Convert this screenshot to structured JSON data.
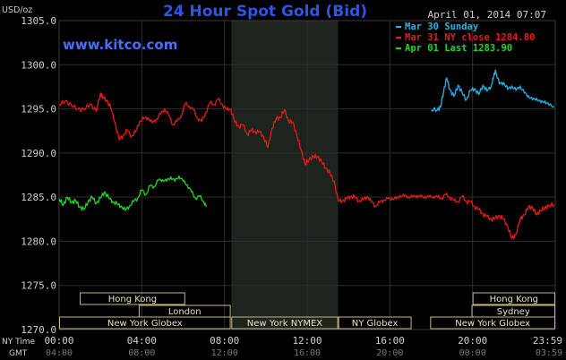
{
  "chart_data": {
    "type": "line",
    "title": "24 Hour Spot Gold (Bid)",
    "source": "www.kitco.com",
    "timestamp": "April 01, 2014 07:07",
    "unit": "USD/oz",
    "ylim": [
      1270,
      1305
    ],
    "yticks": [
      "1305.0",
      "1300.0",
      "1295.0",
      "1290.0",
      "1285.0",
      "1280.0",
      "1275.0",
      "1270.0"
    ],
    "xlim_hours": [
      0,
      24
    ],
    "x_ny_label": "NY Time",
    "x_gmt_label": "GMT",
    "x_ny_ticks": [
      "00:00",
      "04:00",
      "08:00",
      "12:00",
      "16:00",
      "20:00",
      "23:59"
    ],
    "x_gmt_ticks": [
      "04:00",
      "08:00",
      "12:00",
      "16:00",
      "20:00",
      "00:00",
      "03:59"
    ],
    "nymex_hours": [
      8.33,
      13.5
    ],
    "colors": {
      "background": "#000000",
      "plot_bg": "#000000",
      "nymex_bg": "#1d241d",
      "grid": "#2e2e2e",
      "title": "#2f55e6",
      "source": "#4a6cff",
      "session_box": "#c8b882",
      "axis_text": "#d0d0d0"
    },
    "series": [
      {
        "name": "Mar 30 Sunday",
        "color": "#25b4e8",
        "x": [
          18.0,
          18.3,
          18.45,
          18.6,
          18.75,
          18.9,
          19.1,
          19.3,
          19.5,
          19.7,
          19.9,
          20.1,
          20.3,
          20.5,
          20.7,
          20.9,
          21.0,
          21.1,
          21.3,
          21.5,
          21.7,
          21.9,
          22.1,
          22.3,
          22.5,
          22.7,
          22.9,
          23.1,
          23.3,
          23.5,
          23.7,
          23.95
        ],
        "y": [
          1294.9,
          1294.9,
          1295.2,
          1297.0,
          1298.5,
          1297.2,
          1296.4,
          1297.7,
          1296.8,
          1296.0,
          1297.1,
          1297.3,
          1296.6,
          1297.7,
          1297.0,
          1297.6,
          1298.4,
          1299.4,
          1297.8,
          1298.0,
          1297.2,
          1297.6,
          1297.1,
          1297.6,
          1296.8,
          1296.5,
          1296.0,
          1296.2,
          1295.7,
          1295.9,
          1295.4,
          1295.3
        ]
      },
      {
        "name": "Mar 31 NY close 1284.80",
        "color": "#e81a1a",
        "x": [
          0.0,
          0.3,
          0.6,
          0.9,
          1.2,
          1.5,
          1.8,
          2.0,
          2.1,
          2.3,
          2.5,
          2.7,
          2.9,
          3.1,
          3.3,
          3.5,
          3.7,
          3.9,
          4.1,
          4.3,
          4.5,
          4.7,
          4.9,
          5.1,
          5.3,
          5.5,
          5.7,
          5.9,
          6.1,
          6.3,
          6.5,
          6.7,
          6.9,
          7.1,
          7.3,
          7.5,
          7.7,
          7.9,
          8.1,
          8.3,
          8.5,
          8.7,
          8.9,
          9.1,
          9.3,
          9.5,
          9.7,
          9.9,
          10.1,
          10.3,
          10.5,
          10.7,
          10.9,
          11.1,
          11.3,
          11.5,
          11.7,
          11.9,
          12.1,
          12.3,
          12.5,
          12.7,
          12.9,
          13.1,
          13.3,
          13.5,
          13.7,
          13.9,
          14.1,
          14.3,
          14.5,
          14.7,
          14.9,
          15.1,
          15.3,
          15.5,
          15.7,
          15.9,
          16.1,
          16.3,
          16.5,
          16.7,
          16.9,
          17.1,
          17.3,
          17.5,
          17.7,
          17.9,
          18.1,
          18.3,
          18.5,
          18.7,
          18.9,
          19.1,
          19.3,
          19.5,
          19.7,
          19.9,
          20.1,
          20.3,
          20.5,
          20.7,
          20.9,
          21.1,
          21.3,
          21.5,
          21.7,
          21.9,
          22.1,
          22.3,
          22.5,
          22.7,
          22.9,
          23.1,
          23.3,
          23.5,
          23.7,
          23.95
        ],
        "y": [
          1295.5,
          1295.9,
          1295.4,
          1295.0,
          1294.9,
          1295.6,
          1294.7,
          1296.8,
          1296.3,
          1296.0,
          1295.1,
          1293.5,
          1291.5,
          1292.0,
          1292.6,
          1291.9,
          1292.4,
          1293.6,
          1293.9,
          1294.0,
          1293.4,
          1293.8,
          1294.4,
          1295.0,
          1294.3,
          1293.2,
          1293.6,
          1294.2,
          1295.6,
          1295.3,
          1294.9,
          1293.9,
          1293.6,
          1294.6,
          1295.7,
          1295.5,
          1296.1,
          1295.5,
          1294.9,
          1295.0,
          1293.5,
          1293.0,
          1293.2,
          1292.1,
          1292.6,
          1292.4,
          1292.4,
          1291.8,
          1290.6,
          1292.8,
          1293.9,
          1294.0,
          1294.9,
          1293.6,
          1293.5,
          1292.0,
          1290.4,
          1288.7,
          1289.3,
          1289.6,
          1289.6,
          1289.0,
          1288.3,
          1287.7,
          1286.8,
          1284.6,
          1284.6,
          1284.8,
          1285.1,
          1285.0,
          1284.6,
          1284.7,
          1285.1,
          1284.5,
          1284.0,
          1284.4,
          1284.7,
          1284.8,
          1284.9,
          1284.8,
          1285.2,
          1285.1,
          1285.1,
          1285.0,
          1285.2,
          1285.0,
          1285.1,
          1285.0,
          1285.1,
          1285.0,
          1284.9,
          1285.3,
          1285.0,
          1284.6,
          1284.5,
          1285.1,
          1284.5,
          1284.5,
          1283.9,
          1283.6,
          1283.1,
          1282.8,
          1282.5,
          1282.6,
          1282.9,
          1282.5,
          1281.7,
          1280.3,
          1280.8,
          1282.5,
          1283.0,
          1283.9,
          1283.8,
          1283.0,
          1283.5,
          1283.8,
          1284.0,
          1284.2
        ]
      },
      {
        "name": "Apr 01 Last 1283.90",
        "color": "#22d622",
        "x": [
          0.0,
          0.2,
          0.4,
          0.6,
          0.8,
          1.0,
          1.2,
          1.4,
          1.6,
          1.8,
          2.0,
          2.2,
          2.4,
          2.6,
          2.8,
          3.0,
          3.2,
          3.4,
          3.6,
          3.8,
          4.0,
          4.2,
          4.4,
          4.6,
          4.8,
          5.0,
          5.2,
          5.4,
          5.6,
          5.8,
          6.0,
          6.2,
          6.4,
          6.6,
          6.8,
          7.0,
          7.12
        ],
        "y": [
          1284.8,
          1284.1,
          1285.0,
          1284.4,
          1284.6,
          1283.9,
          1283.6,
          1284.5,
          1285.0,
          1284.3,
          1284.9,
          1285.6,
          1284.9,
          1284.5,
          1284.2,
          1284.0,
          1283.5,
          1284.0,
          1284.5,
          1284.9,
          1285.8,
          1285.3,
          1286.3,
          1286.2,
          1286.9,
          1287.0,
          1286.8,
          1287.3,
          1286.8,
          1287.4,
          1286.8,
          1286.4,
          1285.6,
          1284.9,
          1285.1,
          1284.5,
          1283.9
        ]
      }
    ],
    "sessions": [
      {
        "label": "Hong Kong",
        "start": 1.0,
        "end": 6.1,
        "row": 0
      },
      {
        "label": "Hong Kong",
        "start": 20.0,
        "end": 24.0,
        "row": 0
      },
      {
        "label": "London",
        "start": 3.85,
        "end": 8.3,
        "row": 1
      },
      {
        "label": "Sydney",
        "start": 19.95,
        "end": 24.0,
        "row": 1
      },
      {
        "label": "New York Globex",
        "start": 0.0,
        "end": 8.3,
        "row": 2
      },
      {
        "label": "New York NYMEX",
        "start": 8.33,
        "end": 13.5,
        "row": 2
      },
      {
        "label": "NY Globex",
        "start": 13.5,
        "end": 17.05,
        "row": 2
      },
      {
        "label": "New York Globex",
        "start": 17.95,
        "end": 24.0,
        "row": 2
      }
    ]
  }
}
